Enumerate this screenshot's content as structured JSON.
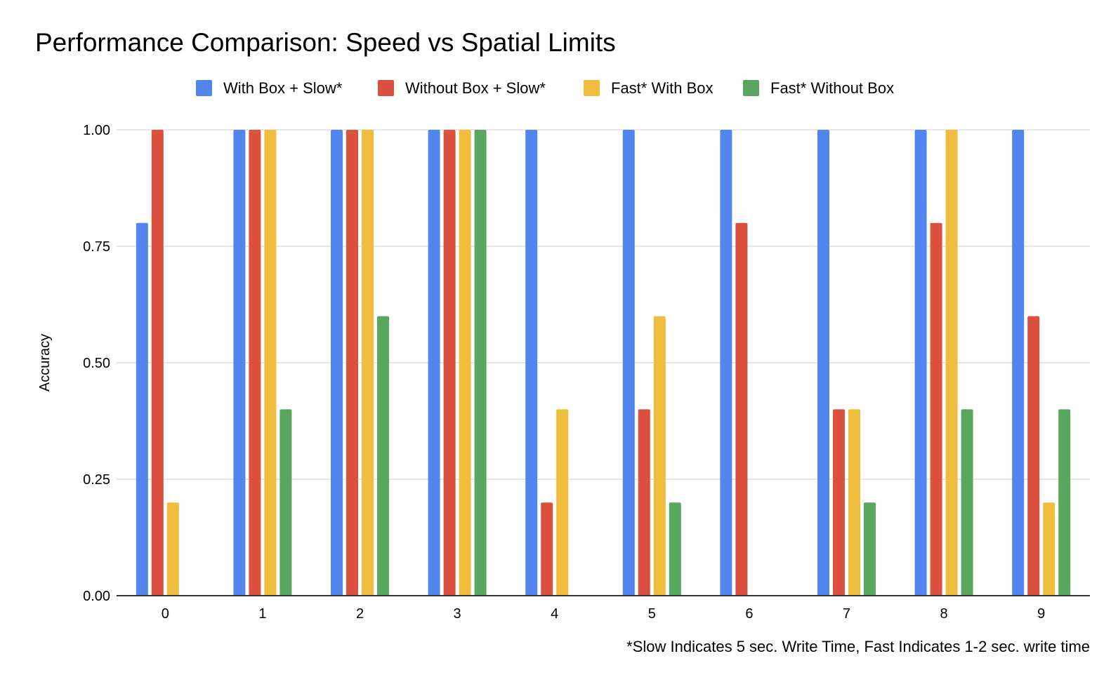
{
  "chart_data": {
    "type": "bar",
    "title": "Performance Comparison: Speed vs Spatial Limits",
    "xlabel": "",
    "ylabel": "Accuracy",
    "footnote": "*Slow Indicates 5 sec. Write Time, Fast Indicates 1-2 sec. write time",
    "categories": [
      "0",
      "1",
      "2",
      "3",
      "4",
      "5",
      "6",
      "7",
      "8",
      "9"
    ],
    "ylim": [
      0,
      1
    ],
    "yticks": [
      "0.00",
      "0.25",
      "0.50",
      "0.75",
      "1.00"
    ],
    "grid": true,
    "legend_position": "top",
    "series": [
      {
        "name": "With Box + Slow*",
        "color": "#5385ee",
        "values": [
          0.8,
          1.0,
          1.0,
          1.0,
          1.0,
          1.0,
          1.0,
          1.0,
          1.0,
          1.0
        ]
      },
      {
        "name": "Without Box + Slow*",
        "color": "#dc5040",
        "values": [
          1.0,
          1.0,
          1.0,
          1.0,
          0.2,
          0.4,
          0.8,
          0.4,
          0.8,
          0.6
        ]
      },
      {
        "name": "Fast* With Box",
        "color": "#f1bd3f",
        "values": [
          0.2,
          1.0,
          1.0,
          1.0,
          0.4,
          0.6,
          0.0,
          0.4,
          1.0,
          0.2
        ]
      },
      {
        "name": "Fast* Without Box",
        "color": "#59a75e",
        "values": [
          0.0,
          0.4,
          0.6,
          1.0,
          0.0,
          0.2,
          0.0,
          0.2,
          0.4,
          0.4
        ]
      }
    ]
  }
}
